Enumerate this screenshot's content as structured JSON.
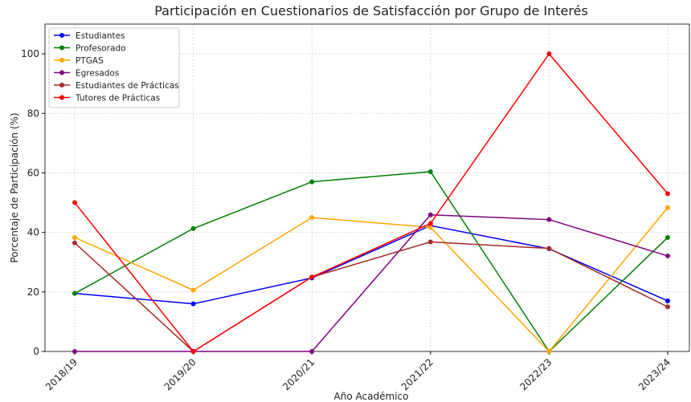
{
  "chart_data": {
    "type": "line",
    "title": "Participación en Cuestionarios de Satisfacción por Grupo de Interés",
    "x_label": "Año Académico",
    "y_label": "Porcentaje de Participación (%)",
    "categories": [
      "2018/19",
      "2019/20",
      "2020/21",
      "2021/22",
      "2022/23",
      "2023/24"
    ],
    "series": [
      {
        "name": "Estudiantes",
        "color": "#0000ff",
        "values": [
          19.5,
          16,
          24.7,
          42.3,
          34.5,
          17
        ]
      },
      {
        "name": "Profesorado",
        "color": "#008000",
        "values": [
          19.5,
          41.3,
          57,
          60.4,
          0,
          38.3
        ]
      },
      {
        "name": "PTGAS",
        "color": "#ffa500",
        "values": [
          38.3,
          20.6,
          45,
          41.7,
          0,
          48.3
        ]
      },
      {
        "name": "Egresados",
        "color": "#800080",
        "values": [
          0,
          0,
          0,
          45.9,
          44.3,
          32.1
        ]
      },
      {
        "name": "Estudiantes de Prácticas",
        "color": "#a52a2a",
        "values": [
          36.5,
          0,
          25,
          36.8,
          34.6,
          15
        ]
      },
      {
        "name": "Tutores de Prácticas",
        "color": "#ff0000",
        "values": [
          50,
          0,
          25,
          43,
          100,
          53
        ]
      }
    ],
    "ylim": [
      0,
      110
    ],
    "yticks": [
      0,
      20,
      40,
      60,
      80,
      100
    ],
    "grid": true,
    "legend": "upper-left"
  }
}
